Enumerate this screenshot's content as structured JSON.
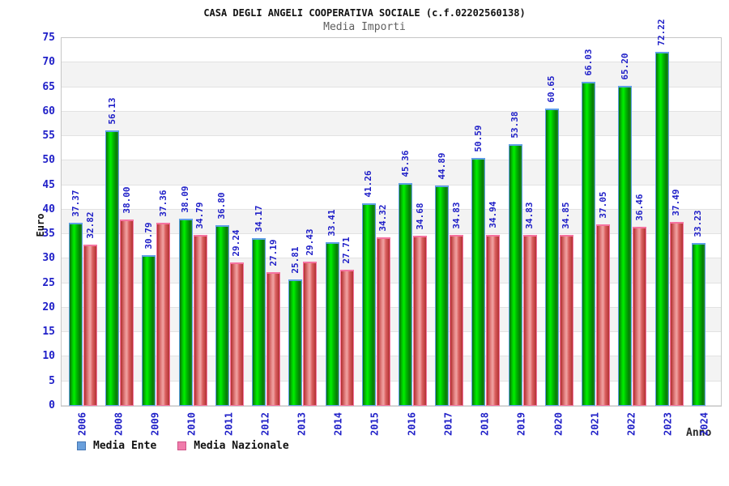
{
  "header": {
    "title": "CASA DEGLI ANGELI COOPERATIVA SOCIALE (c.f.02202560138)",
    "subtitle": "Media Importi"
  },
  "chart_data": {
    "type": "bar",
    "title": "CASA DEGLI ANGELI COOPERATIVA SOCIALE (c.f.02202560138)",
    "subtitle": "Media Importi",
    "ylabel": "Euro",
    "xlabel": "Anno",
    "ylim": [
      0,
      75
    ],
    "ytick_step": 5,
    "grid": "alternating-horizontal-bands",
    "value_labels": "rotated-90-above-bars",
    "legend_position": "bottom-left",
    "categories": [
      "2006",
      "2008",
      "2009",
      "2010",
      "2011",
      "2012",
      "2013",
      "2014",
      "2015",
      "2016",
      "2017",
      "2018",
      "2019",
      "2020",
      "2021",
      "2022",
      "2023",
      "2024"
    ],
    "series": [
      {
        "name": "Media Ente",
        "bar_color": "#00cc00",
        "legend_swatch_color": "#6aa0dc",
        "values": [
          37.37,
          56.13,
          30.79,
          38.09,
          36.8,
          34.17,
          25.81,
          33.41,
          41.26,
          45.36,
          44.89,
          50.59,
          53.38,
          60.65,
          66.03,
          65.2,
          72.22,
          33.23
        ]
      },
      {
        "name": "Media Nazionale",
        "bar_color": "#dd4444",
        "legend_swatch_color": "#f07cab",
        "values": [
          32.82,
          38.0,
          37.36,
          34.79,
          29.24,
          27.19,
          29.43,
          27.71,
          34.32,
          34.68,
          34.83,
          34.94,
          34.83,
          34.85,
          37.05,
          36.46,
          37.49,
          null
        ]
      }
    ],
    "colors": {
      "axis_text": "#2020c8",
      "band_gray": "#f3f3f3",
      "band_white": "#ffffff",
      "green_bar_outline": "#5f9fe6",
      "red_bar_outline": "#f573a0"
    }
  }
}
